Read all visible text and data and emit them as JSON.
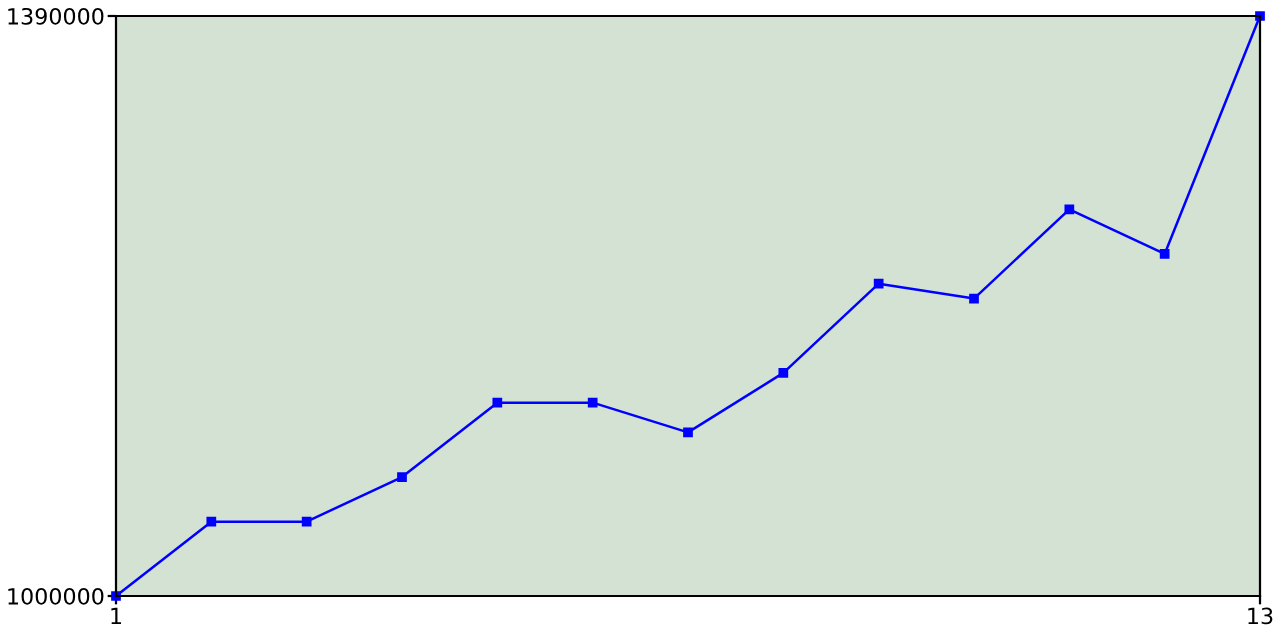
{
  "chart_data": {
    "type": "line",
    "x": [
      1,
      2,
      3,
      4,
      5,
      6,
      7,
      8,
      9,
      10,
      11,
      12,
      13
    ],
    "series": [
      {
        "color": "#0000ff",
        "values": [
          1000000,
          1050000,
          1050000,
          1080000,
          1130000,
          1130000,
          1110000,
          1150000,
          1210000,
          1200000,
          1260000,
          1230000,
          1390000
        ]
      }
    ],
    "xlim": [
      1,
      13
    ],
    "xticks": [
      1,
      13
    ],
    "ylim": [
      1000000,
      1390000
    ],
    "yticks": [
      1000000,
      1390000
    ],
    "marker": "square",
    "line_style": "solid",
    "grid": false,
    "legend": false
  }
}
